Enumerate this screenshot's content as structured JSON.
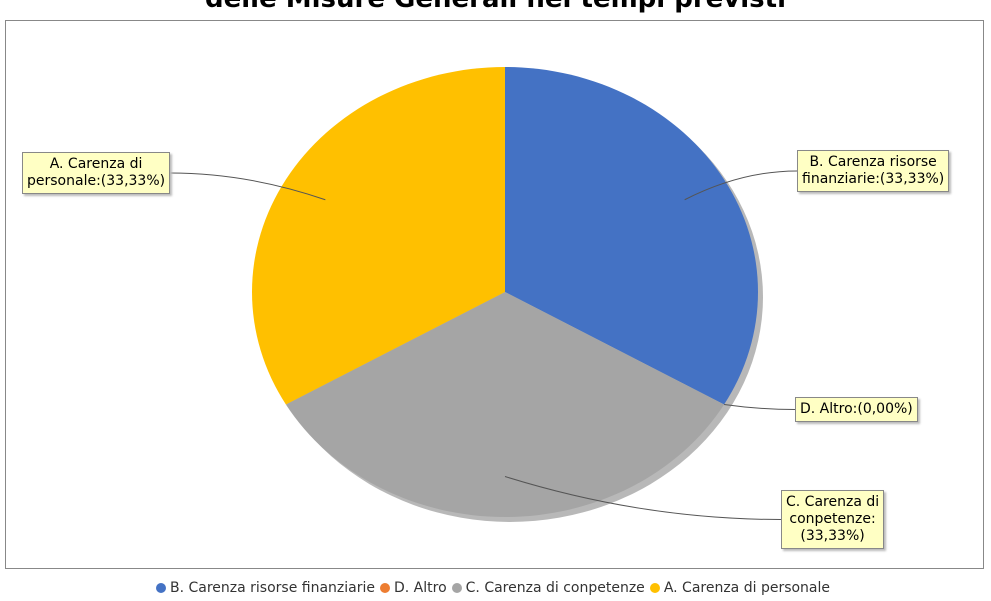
{
  "chart_data": {
    "type": "pie",
    "title": "delle Misure Generali nei tempi previsti",
    "categories": [
      "B. Carenza risorse finanziarie",
      "D. Altro",
      "C. Carenza di conpetenze",
      "A. Carenza di personale"
    ],
    "values": [
      33.33,
      0,
      33.33,
      33.33
    ],
    "value_labels": [
      "B. Carenza risorse\nfinanziarie:(33,33%)",
      "D. Altro:(0,00%)",
      "C. Carenza di\nconpetenze:\n(33,33%)",
      "A. Carenza di\npersonale:(33,33%)"
    ],
    "colors": [
      "#4472c4",
      "#ed7d31",
      "#a5a5a5",
      "#ffc000"
    ],
    "legend": "bottom"
  }
}
